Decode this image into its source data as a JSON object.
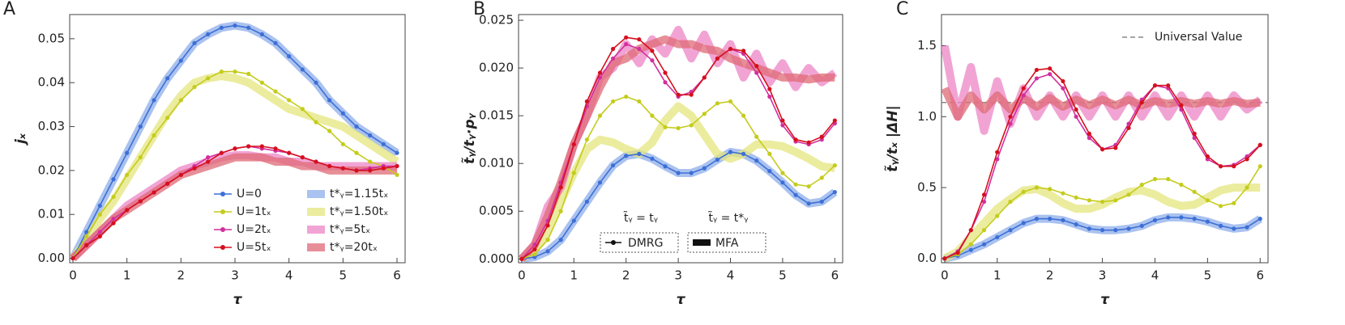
{
  "chart_data": [
    {
      "type": "line",
      "panel_label": "A",
      "ylabel": "jₓ",
      "xlabel": "τ",
      "xlim": [
        -0.06,
        6.15
      ],
      "ylim": [
        -0.001,
        0.0555
      ],
      "xticks": [
        0,
        1,
        2,
        3,
        4,
        5,
        6
      ],
      "yticks": [
        {
          "value": 0,
          "label": "0.00"
        },
        0.01,
        0.02,
        0.03,
        0.04,
        0.05
      ],
      "x": [
        0,
        0.25,
        0.5,
        0.75,
        1,
        1.25,
        1.5,
        1.75,
        2,
        2.25,
        2.5,
        2.75,
        3,
        3.25,
        3.5,
        3.75,
        4,
        4.25,
        4.5,
        4.75,
        5,
        5.25,
        5.5,
        5.75,
        6
      ],
      "series": [
        {
          "name": "U=0",
          "kind": "dmrg",
          "color": "#3d6fd6",
          "values": [
            0,
            0.006,
            0.012,
            0.018,
            0.024,
            0.03,
            0.036,
            0.041,
            0.045,
            0.049,
            0.051,
            0.0525,
            0.053,
            0.0525,
            0.051,
            0.049,
            0.046,
            0.043,
            0.04,
            0.036,
            0.033,
            0.03,
            0.028,
            0.026,
            0.024
          ]
        },
        {
          "name": "U=1tₓ",
          "kind": "dmrg",
          "color": "#c4cc1c",
          "values": [
            0,
            0.005,
            0.01,
            0.014,
            0.019,
            0.023,
            0.028,
            0.032,
            0.036,
            0.039,
            0.041,
            0.0425,
            0.0425,
            0.042,
            0.04,
            0.038,
            0.036,
            0.034,
            0.031,
            0.029,
            0.026,
            0.024,
            0.022,
            0.021,
            0.019
          ]
        },
        {
          "name": "U=2tₓ",
          "kind": "dmrg",
          "color": "#d22f9e",
          "values": [
            0,
            0.003,
            0.006,
            0.009,
            0.011,
            0.013,
            0.015,
            0.017,
            0.019,
            0.021,
            0.023,
            0.024,
            0.025,
            0.0255,
            0.025,
            0.0245,
            0.024,
            0.023,
            0.022,
            0.021,
            0.0205,
            0.02,
            0.0205,
            0.021,
            0.021
          ]
        },
        {
          "name": "U=5tₓ",
          "kind": "dmrg",
          "color": "#d5101e",
          "values": [
            0,
            0.003,
            0.005,
            0.008,
            0.011,
            0.013,
            0.015,
            0.017,
            0.019,
            0.0205,
            0.022,
            0.024,
            0.025,
            0.0255,
            0.0255,
            0.025,
            0.024,
            0.023,
            0.022,
            0.021,
            0.0205,
            0.02,
            0.02,
            0.0205,
            0.021
          ]
        },
        {
          "name": "t*ᵧ=1.15tₓ",
          "kind": "mfa",
          "color": "#8eaeea",
          "values": [
            0,
            0.006,
            0.012,
            0.018,
            0.024,
            0.03,
            0.036,
            0.041,
            0.045,
            0.049,
            0.051,
            0.0525,
            0.053,
            0.0525,
            0.051,
            0.049,
            0.046,
            0.043,
            0.04,
            0.036,
            0.033,
            0.03,
            0.028,
            0.026,
            0.024
          ]
        },
        {
          "name": "t*ᵧ=1.50tₓ",
          "kind": "mfa",
          "color": "#e4e67e",
          "values": [
            0,
            0.004,
            0.009,
            0.013,
            0.018,
            0.023,
            0.028,
            0.033,
            0.037,
            0.04,
            0.041,
            0.0415,
            0.041,
            0.04,
            0.038,
            0.036,
            0.034,
            0.033,
            0.032,
            0.031,
            0.03,
            0.028,
            0.026,
            0.024,
            0.022
          ]
        },
        {
          "name": "t*ᵧ=5tₓ",
          "kind": "mfa",
          "color": "#ec86c6",
          "values": [
            0,
            0.003,
            0.006,
            0.009,
            0.012,
            0.014,
            0.016,
            0.018,
            0.02,
            0.021,
            0.022,
            0.023,
            0.0235,
            0.0235,
            0.023,
            0.023,
            0.022,
            0.022,
            0.021,
            0.021,
            0.021,
            0.021,
            0.021,
            0.021,
            0.021
          ]
        },
        {
          "name": "t*ᵧ=20tₓ",
          "kind": "mfa",
          "color": "#df6a75",
          "values": [
            0,
            0.003,
            0.006,
            0.009,
            0.011,
            0.013,
            0.015,
            0.017,
            0.019,
            0.02,
            0.021,
            0.022,
            0.023,
            0.023,
            0.023,
            0.022,
            0.022,
            0.021,
            0.021,
            0.02,
            0.02,
            0.02,
            0.02,
            0.02,
            0.02
          ]
        }
      ]
    },
    {
      "type": "line",
      "panel_label": "B",
      "ylabel": "t̃ᵧ/tᵧ·pᵧ",
      "xlabel": "τ",
      "xlim": [
        -0.06,
        6.15
      ],
      "ylim": [
        -0.0004,
        0.0256
      ],
      "xticks": [
        0,
        1,
        2,
        3,
        4,
        5,
        6
      ],
      "yticks": [
        {
          "value": 0,
          "label": "0.000"
        },
        0.005,
        {
          "value": 0.01,
          "label": "0.010"
        },
        0.015,
        {
          "value": 0.02,
          "label": "0.020"
        },
        0.025
      ],
      "legend_headers": [
        "t̃ᵧ = tᵧ",
        "t̃ᵧ = t*ᵧ"
      ],
      "legend_entries": [
        "DMRG",
        "MFA"
      ],
      "x": [
        0,
        0.25,
        0.5,
        0.75,
        1,
        1.25,
        1.5,
        1.75,
        2,
        2.25,
        2.5,
        2.75,
        3,
        3.25,
        3.5,
        3.75,
        4,
        4.25,
        4.5,
        4.75,
        5,
        5.25,
        5.5,
        5.75,
        6
      ],
      "series": [
        {
          "kind": "dmrg",
          "color": "#3d6fd6",
          "values": [
            0,
            0.0002,
            0.0008,
            0.002,
            0.004,
            0.006,
            0.008,
            0.0098,
            0.0108,
            0.011,
            0.0105,
            0.0097,
            0.009,
            0.009,
            0.0095,
            0.0104,
            0.0112,
            0.011,
            0.0103,
            0.0092,
            0.008,
            0.0067,
            0.0058,
            0.006,
            0.007
          ]
        },
        {
          "kind": "dmrg",
          "color": "#c4cc1c",
          "values": [
            0,
            0.0005,
            0.002,
            0.005,
            0.009,
            0.0125,
            0.015,
            0.0165,
            0.017,
            0.0165,
            0.015,
            0.0138,
            0.0137,
            0.014,
            0.0152,
            0.0163,
            0.0165,
            0.015,
            0.0128,
            0.011,
            0.009,
            0.0078,
            0.0076,
            0.0085,
            0.0098
          ]
        },
        {
          "kind": "dmrg",
          "color": "#d22f9e",
          "values": [
            0,
            0.0015,
            0.004,
            0.008,
            0.012,
            0.016,
            0.019,
            0.021,
            0.0225,
            0.022,
            0.0208,
            0.0185,
            0.017,
            0.0175,
            0.019,
            0.021,
            0.022,
            0.0215,
            0.0195,
            0.017,
            0.014,
            0.0123,
            0.012,
            0.0125,
            0.0142
          ]
        },
        {
          "kind": "dmrg",
          "color": "#d5101e",
          "values": [
            0,
            0.001,
            0.0035,
            0.0075,
            0.012,
            0.0165,
            0.0195,
            0.022,
            0.0232,
            0.023,
            0.0218,
            0.0195,
            0.0172,
            0.0172,
            0.019,
            0.021,
            0.022,
            0.0218,
            0.0202,
            0.0178,
            0.0145,
            0.0125,
            0.0122,
            0.0128,
            0.0145
          ]
        },
        {
          "kind": "mfa",
          "color": "#8eaeea",
          "values": [
            0,
            0.0002,
            0.0008,
            0.002,
            0.004,
            0.006,
            0.008,
            0.0098,
            0.0108,
            0.011,
            0.0105,
            0.0097,
            0.009,
            0.009,
            0.0095,
            0.0104,
            0.0112,
            0.011,
            0.0103,
            0.0092,
            0.008,
            0.0067,
            0.0058,
            0.006,
            0.007
          ]
        },
        {
          "kind": "mfa",
          "color": "#e4e67e",
          "values": [
            0,
            0.001,
            0.003,
            0.006,
            0.009,
            0.0115,
            0.0125,
            0.0122,
            0.0115,
            0.011,
            0.0122,
            0.0145,
            0.016,
            0.015,
            0.013,
            0.011,
            0.0105,
            0.011,
            0.012,
            0.012,
            0.0118,
            0.0112,
            0.0105,
            0.0097,
            0.0095
          ]
        },
        {
          "kind": "mfa",
          "color": "#ec86c6",
          "values": [
            0,
            0.0015,
            0.0055,
            0.0075,
            0.012,
            0.015,
            0.019,
            0.02,
            0.0225,
            0.0205,
            0.023,
            0.0215,
            0.024,
            0.021,
            0.0235,
            0.0205,
            0.0225,
            0.019,
            0.0215,
            0.0185,
            0.0205,
            0.018,
            0.02,
            0.0185,
            0.0195
          ]
        },
        {
          "kind": "mfa",
          "color": "#df6a75",
          "values": [
            0,
            0.0015,
            0.0045,
            0.008,
            0.012,
            0.015,
            0.018,
            0.0205,
            0.021,
            0.022,
            0.0225,
            0.023,
            0.0225,
            0.0225,
            0.022,
            0.0218,
            0.021,
            0.0205,
            0.02,
            0.0195,
            0.019,
            0.019,
            0.0188,
            0.019,
            0.019
          ]
        }
      ]
    },
    {
      "type": "line",
      "panel_label": "C",
      "ylabel": "t̃ᵧ/tₓ |ΔH|",
      "xlabel": "τ",
      "xlim": [
        -0.06,
        6.15
      ],
      "ylim": [
        -0.03,
        1.72
      ],
      "xticks": [
        0,
        1,
        2,
        3,
        4,
        5,
        6
      ],
      "yticks": [
        {
          "value": 0,
          "label": "0.0"
        },
        0.5,
        {
          "value": 1,
          "label": "1.0"
        },
        1.5
      ],
      "reference_line": {
        "value": 1.1,
        "label": "Universal Value",
        "color": "#888888"
      },
      "x": [
        0,
        0.25,
        0.5,
        0.75,
        1,
        1.25,
        1.5,
        1.75,
        2,
        2.25,
        2.5,
        2.75,
        3,
        3.25,
        3.5,
        3.75,
        4,
        4.25,
        4.5,
        4.75,
        5,
        5.25,
        5.5,
        5.75,
        6
      ],
      "series": [
        {
          "kind": "dmrg",
          "color": "#3d6fd6",
          "values": [
            0,
            0.02,
            0.06,
            0.1,
            0.15,
            0.2,
            0.25,
            0.28,
            0.28,
            0.27,
            0.24,
            0.21,
            0.2,
            0.2,
            0.21,
            0.23,
            0.27,
            0.29,
            0.29,
            0.28,
            0.26,
            0.23,
            0.21,
            0.22,
            0.28
          ]
        },
        {
          "kind": "dmrg",
          "color": "#c4cc1c",
          "values": [
            0,
            0.03,
            0.1,
            0.2,
            0.3,
            0.4,
            0.47,
            0.5,
            0.49,
            0.46,
            0.43,
            0.41,
            0.4,
            0.41,
            0.45,
            0.52,
            0.56,
            0.56,
            0.52,
            0.47,
            0.41,
            0.37,
            0.39,
            0.5,
            0.65
          ]
        },
        {
          "kind": "dmrg",
          "color": "#d22f9e",
          "values": [
            0,
            0.05,
            0.2,
            0.4,
            0.7,
            0.95,
            1.15,
            1.27,
            1.3,
            1.2,
            1.0,
            0.85,
            0.77,
            0.8,
            0.95,
            1.12,
            1.22,
            1.2,
            1.05,
            0.85,
            0.7,
            0.65,
            0.66,
            0.72,
            0.8
          ]
        },
        {
          "kind": "dmrg",
          "color": "#d5101e",
          "values": [
            0,
            0.04,
            0.2,
            0.45,
            0.75,
            1.0,
            1.2,
            1.33,
            1.34,
            1.25,
            1.05,
            0.88,
            0.77,
            0.78,
            0.92,
            1.1,
            1.22,
            1.22,
            1.08,
            0.88,
            0.72,
            0.65,
            0.65,
            0.7,
            0.8
          ]
        },
        {
          "kind": "mfa",
          "color": "#8eaeea",
          "values": [
            0,
            0.02,
            0.06,
            0.1,
            0.15,
            0.2,
            0.25,
            0.28,
            0.28,
            0.27,
            0.24,
            0.21,
            0.2,
            0.2,
            0.21,
            0.23,
            0.27,
            0.29,
            0.29,
            0.28,
            0.26,
            0.23,
            0.21,
            0.22,
            0.28
          ]
        },
        {
          "kind": "mfa",
          "color": "#e4e67e",
          "values": [
            0,
            0.05,
            0.15,
            0.25,
            0.35,
            0.42,
            0.48,
            0.49,
            0.45,
            0.39,
            0.35,
            0.35,
            0.38,
            0.43,
            0.47,
            0.48,
            0.45,
            0.4,
            0.37,
            0.38,
            0.43,
            0.48,
            0.5,
            0.5,
            0.5
          ]
        },
        {
          "kind": "mfa",
          "color": "#ec86c6",
          "values": [
            1.5,
            1.0,
            1.35,
            0.9,
            1.25,
            0.95,
            1.2,
            1.0,
            1.15,
            1.0,
            1.15,
            1.0,
            1.15,
            1.0,
            1.15,
            1.0,
            1.15,
            1.0,
            1.15,
            1.0,
            1.15,
            1.0,
            1.15,
            1.05,
            1.12
          ]
        },
        {
          "kind": "mfa",
          "color": "#df6a75",
          "values": [
            1.2,
            1.0,
            1.15,
            1.05,
            1.15,
            1.05,
            1.13,
            1.07,
            1.13,
            1.07,
            1.12,
            1.08,
            1.12,
            1.08,
            1.12,
            1.08,
            1.11,
            1.09,
            1.11,
            1.09,
            1.11,
            1.09,
            1.11,
            1.09,
            1.1
          ]
        }
      ]
    }
  ]
}
